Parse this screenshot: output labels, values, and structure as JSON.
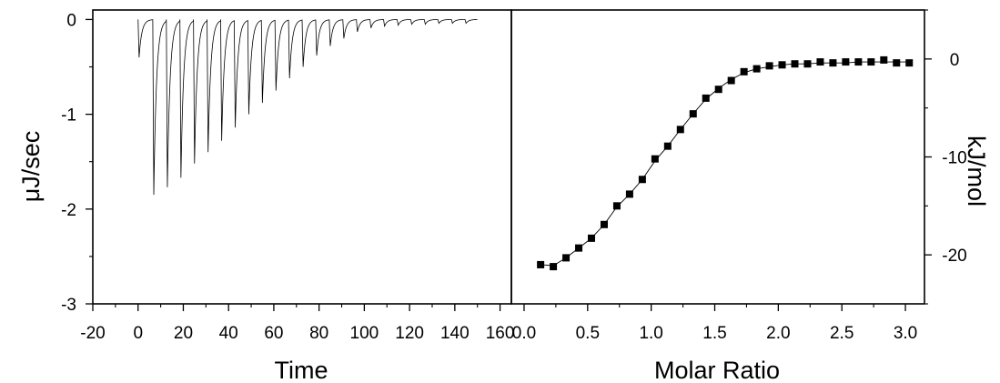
{
  "chart_data": [
    {
      "type": "line",
      "xlabel": "Time",
      "ylabel": "μJ/sec",
      "xlim": [
        -20,
        165
      ],
      "ylim": [
        -3,
        0.1
      ],
      "xticks": [
        -20,
        0,
        20,
        40,
        60,
        80,
        100,
        120,
        140,
        160
      ],
      "yticks": [
        0,
        -1,
        -2,
        -3
      ],
      "grid": false,
      "series": [
        {
          "style": "thin-black-line",
          "baseline": 0,
          "injection_times": [
            0,
            6.5,
            12.5,
            18.5,
            24.5,
            30.5,
            36.5,
            42.5,
            48.5,
            54.5,
            60.5,
            66.5,
            72.5,
            78.5,
            84.5,
            90.5,
            96.5,
            102.5,
            108.5,
            114.5,
            120.5,
            126.5,
            132.5,
            138.5,
            144.5
          ],
          "peak_minima": [
            -0.4,
            -1.85,
            -1.77,
            -1.67,
            -1.52,
            -1.4,
            -1.28,
            -1.14,
            -1.0,
            -0.88,
            -0.75,
            -0.62,
            -0.5,
            -0.38,
            -0.28,
            -0.2,
            -0.13,
            -0.09,
            -0.07,
            -0.06,
            -0.05,
            -0.05,
            -0.04,
            -0.04,
            -0.04
          ],
          "x_end": 150
        }
      ]
    },
    {
      "type": "scatter",
      "xlabel": "Molar Ratio",
      "ylabel": "kJ/mol",
      "xlim": [
        -0.1,
        3.15
      ],
      "ylim": [
        -25,
        5
      ],
      "xticks": [
        0.0,
        0.5,
        1.0,
        1.5,
        2.0,
        2.5,
        3.0
      ],
      "xtick_labels": [
        "0.0",
        "0.5",
        "1.0",
        "1.5",
        "2.0",
        "2.5",
        "3.0"
      ],
      "yticks": [
        0,
        -10,
        -20
      ],
      "y_axis_side": "right",
      "grid": false,
      "series": [
        {
          "style": "black-square-markers",
          "x": [
            0.13,
            0.23,
            0.33,
            0.43,
            0.53,
            0.63,
            0.73,
            0.83,
            0.93,
            1.03,
            1.13,
            1.23,
            1.33,
            1.43,
            1.53,
            1.63,
            1.73,
            1.83,
            1.93,
            2.03,
            2.13,
            2.23,
            2.33,
            2.43,
            2.53,
            2.63,
            2.73,
            2.83,
            2.93,
            3.03
          ],
          "values": [
            -21.0,
            -21.2,
            -20.3,
            -19.3,
            -18.3,
            -16.9,
            -15.0,
            -13.8,
            -12.3,
            -10.2,
            -8.9,
            -7.2,
            -5.6,
            -4.0,
            -3.1,
            -2.2,
            -1.3,
            -1.0,
            -0.7,
            -0.6,
            -0.5,
            -0.5,
            -0.3,
            -0.4,
            -0.3,
            -0.3,
            -0.3,
            -0.1,
            -0.4,
            -0.4
          ]
        },
        {
          "style": "thin-black-fit-line",
          "x": [
            0.13,
            0.23,
            0.33,
            0.43,
            0.53,
            0.63,
            0.73,
            0.83,
            0.93,
            1.03,
            1.13,
            1.23,
            1.33,
            1.43,
            1.53,
            1.63,
            1.73,
            1.83,
            1.93,
            2.03,
            2.13,
            2.23,
            2.33,
            2.43,
            2.53,
            2.63,
            2.73,
            2.83,
            2.93,
            3.03
          ],
          "values": [
            -21.0,
            -21.1,
            -20.3,
            -19.3,
            -18.3,
            -16.9,
            -15.1,
            -13.8,
            -12.3,
            -10.4,
            -8.9,
            -7.2,
            -5.6,
            -4.1,
            -3.0,
            -2.1,
            -1.4,
            -1.0,
            -0.8,
            -0.6,
            -0.5,
            -0.5,
            -0.4,
            -0.4,
            -0.4,
            -0.3,
            -0.3,
            -0.3,
            -0.3,
            -0.3
          ]
        }
      ]
    }
  ]
}
